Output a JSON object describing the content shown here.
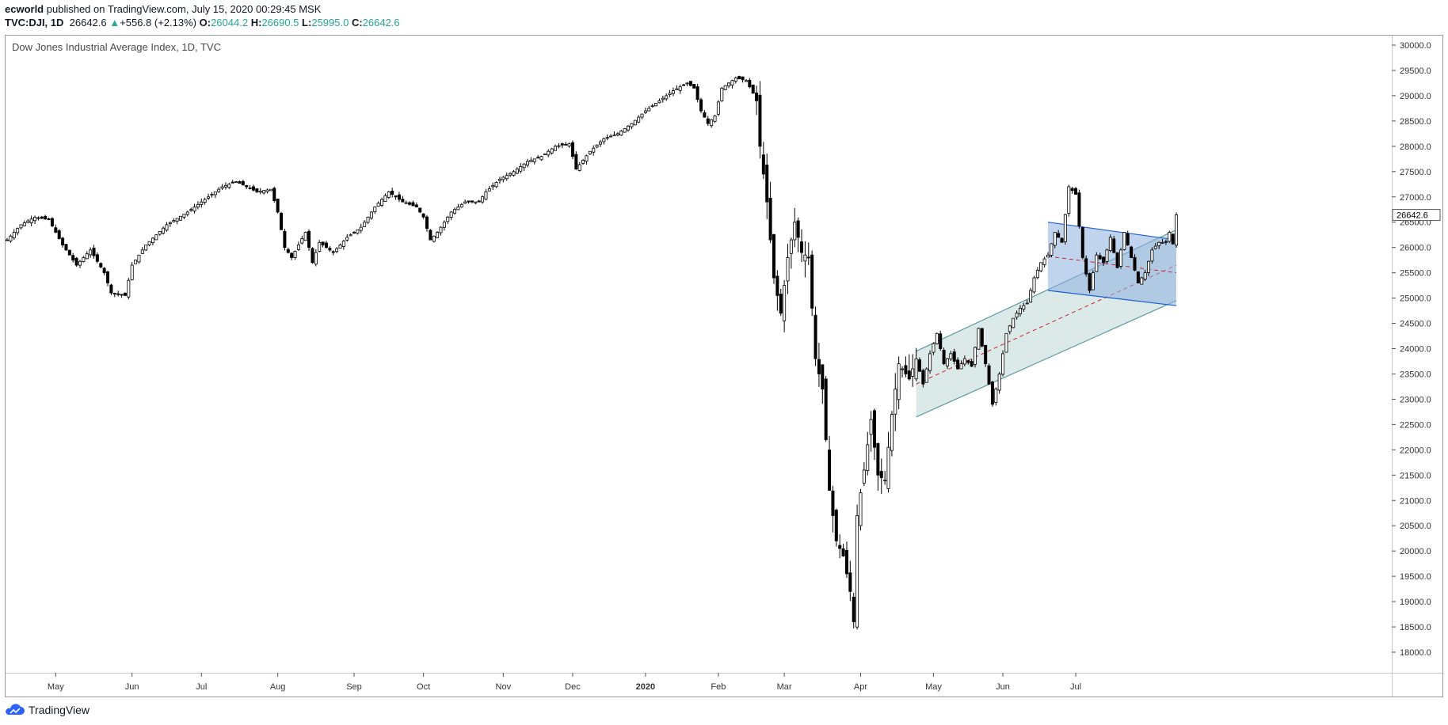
{
  "header": {
    "author": "ecworld",
    "published_text": "published on TradingView.com, July 15, 2020 00:29:45 MSK",
    "symbol": "TVC:DJI, 1D",
    "last": "26642.6",
    "change_arrow": "▲",
    "change": "+556.8 (+2.13%)",
    "o_label": "O:",
    "o_value": "26044.2",
    "h_label": "H:",
    "h_value": "26690.5",
    "l_label": "L:",
    "l_value": "25995.0",
    "c_label": "C:",
    "c_value": "26642.6"
  },
  "footer": {
    "brand": "TradingView",
    "icon": "tradingview-cloud-icon"
  },
  "colors": {
    "up_candle": "#ffffff",
    "down_candle": "#000000",
    "channel_fill": "#cfe1e1",
    "channel_stroke": "#5a9aa0",
    "flag_fill": "#8eb0e0",
    "flag_stroke": "#1e5dd0",
    "midline": "#cc2233",
    "price_label_bg": "#ffffff"
  },
  "chart_data": {
    "type": "candlestick",
    "title": "Dow Jones Industrial Average Index, 1D, TVC",
    "ylim": [
      17300,
      30200
    ],
    "y_ticks": [
      "30000.0",
      "29500.0",
      "29000.0",
      "28500.0",
      "28000.0",
      "27500.0",
      "27000.0",
      "26500.0",
      "26000.0",
      "25500.0",
      "25000.0",
      "24500.0",
      "24000.0",
      "23500.0",
      "23000.0",
      "22500.0",
      "22000.0",
      "21500.0",
      "21000.0",
      "20500.0",
      "20000.0",
      "19500.0",
      "19000.0",
      "18500.0",
      "18000.0"
    ],
    "last_price_label": "26642.6",
    "x_ticks": [
      {
        "label": "May",
        "index": 14
      },
      {
        "label": "Jun",
        "index": 36
      },
      {
        "label": "Jul",
        "index": 56
      },
      {
        "label": "Aug",
        "index": 78
      },
      {
        "label": "Sep",
        "index": 100
      },
      {
        "label": "Oct",
        "index": 120
      },
      {
        "label": "Nov",
        "index": 143
      },
      {
        "label": "Dec",
        "index": 163
      },
      {
        "label": "2020",
        "index": 184
      },
      {
        "label": "Feb",
        "index": 205
      },
      {
        "label": "Mar",
        "index": 224
      },
      {
        "label": "Apr",
        "index": 246
      },
      {
        "label": "May",
        "index": 267
      },
      {
        "label": "Jun",
        "index": 287
      },
      {
        "label": "Jul",
        "index": 308
      }
    ],
    "close_anchors": [
      [
        0,
        26150
      ],
      [
        4,
        26450
      ],
      [
        8,
        26600
      ],
      [
        12,
        26550
      ],
      [
        16,
        26050
      ],
      [
        20,
        25650
      ],
      [
        24,
        25950
      ],
      [
        28,
        25500
      ],
      [
        30,
        25100
      ],
      [
        34,
        25050
      ],
      [
        36,
        25650
      ],
      [
        40,
        26050
      ],
      [
        46,
        26450
      ],
      [
        52,
        26700
      ],
      [
        56,
        26900
      ],
      [
        62,
        27200
      ],
      [
        66,
        27300
      ],
      [
        72,
        27100
      ],
      [
        76,
        27150
      ],
      [
        78,
        26700
      ],
      [
        80,
        26000
      ],
      [
        82,
        25800
      ],
      [
        86,
        26300
      ],
      [
        88,
        25700
      ],
      [
        90,
        26100
      ],
      [
        94,
        25900
      ],
      [
        98,
        26200
      ],
      [
        102,
        26400
      ],
      [
        106,
        26800
      ],
      [
        110,
        27100
      ],
      [
        114,
        26900
      ],
      [
        118,
        26800
      ],
      [
        120,
        26600
      ],
      [
        122,
        26150
      ],
      [
        124,
        26300
      ],
      [
        128,
        26700
      ],
      [
        132,
        26900
      ],
      [
        136,
        26900
      ],
      [
        138,
        27100
      ],
      [
        142,
        27350
      ],
      [
        146,
        27500
      ],
      [
        150,
        27700
      ],
      [
        154,
        27800
      ],
      [
        158,
        28000
      ],
      [
        162,
        28050
      ],
      [
        164,
        27550
      ],
      [
        168,
        27900
      ],
      [
        172,
        28150
      ],
      [
        176,
        28250
      ],
      [
        180,
        28450
      ],
      [
        184,
        28700
      ],
      [
        188,
        28900
      ],
      [
        192,
        29100
      ],
      [
        196,
        29250
      ],
      [
        198,
        29150
      ],
      [
        200,
        28700
      ],
      [
        202,
        28450
      ],
      [
        204,
        28600
      ],
      [
        206,
        29150
      ],
      [
        210,
        29350
      ],
      [
        213,
        29300
      ],
      [
        215,
        29050
      ],
      [
        216,
        28900
      ],
      [
        217,
        28000
      ],
      [
        219,
        26900
      ],
      [
        221,
        25400
      ],
      [
        223,
        24700
      ],
      [
        225,
        25800
      ],
      [
        227,
        26500
      ],
      [
        229,
        25900
      ],
      [
        231,
        25800
      ],
      [
        233,
        23800
      ],
      [
        235,
        23200
      ],
      [
        237,
        21200
      ],
      [
        239,
        20200
      ],
      [
        241,
        19900
      ],
      [
        243,
        19200
      ],
      [
        244,
        18600
      ],
      [
        245,
        20700
      ],
      [
        247,
        21600
      ],
      [
        249,
        22600
      ],
      [
        251,
        21500
      ],
      [
        253,
        21400
      ],
      [
        255,
        22700
      ],
      [
        257,
        23700
      ],
      [
        260,
        23400
      ],
      [
        262,
        23800
      ],
      [
        264,
        23300
      ],
      [
        266,
        23900
      ],
      [
        268,
        24300
      ],
      [
        270,
        23700
      ],
      [
        272,
        23900
      ],
      [
        274,
        23600
      ],
      [
        276,
        23800
      ],
      [
        278,
        23650
      ],
      [
        280,
        24400
      ],
      [
        282,
        23700
      ],
      [
        284,
        22900
      ],
      [
        286,
        23500
      ],
      [
        288,
        24300
      ],
      [
        290,
        24600
      ],
      [
        292,
        24800
      ],
      [
        294,
        24900
      ],
      [
        296,
        25400
      ],
      [
        298,
        25700
      ],
      [
        300,
        25850
      ],
      [
        302,
        26300
      ],
      [
        304,
        26100
      ],
      [
        306,
        27200
      ],
      [
        308,
        27050
      ],
      [
        310,
        25800
      ],
      [
        312,
        25150
      ],
      [
        314,
        25850
      ],
      [
        316,
        25700
      ],
      [
        318,
        26200
      ],
      [
        320,
        25600
      ],
      [
        322,
        26300
      ],
      [
        324,
        25800
      ],
      [
        326,
        25300
      ],
      [
        328,
        25500
      ],
      [
        330,
        25950
      ],
      [
        332,
        26100
      ],
      [
        334,
        26100
      ],
      [
        335,
        26300
      ],
      [
        336,
        26070
      ],
      [
        337,
        26642.6
      ]
    ],
    "last_candle": {
      "open": 26044.2,
      "high": 26690.5,
      "low": 25995.0,
      "close": 26642.6
    },
    "drawings": [
      {
        "type": "parallel-channel",
        "start_index": 262,
        "end_index": 337,
        "upper": [
          23950,
          26350
        ],
        "lower": [
          22650,
          24950
        ]
      },
      {
        "type": "flag-channel",
        "start_index": 300,
        "end_index": 337,
        "upper": [
          26500,
          26150
        ],
        "lower": [
          25150,
          24850
        ]
      }
    ]
  }
}
